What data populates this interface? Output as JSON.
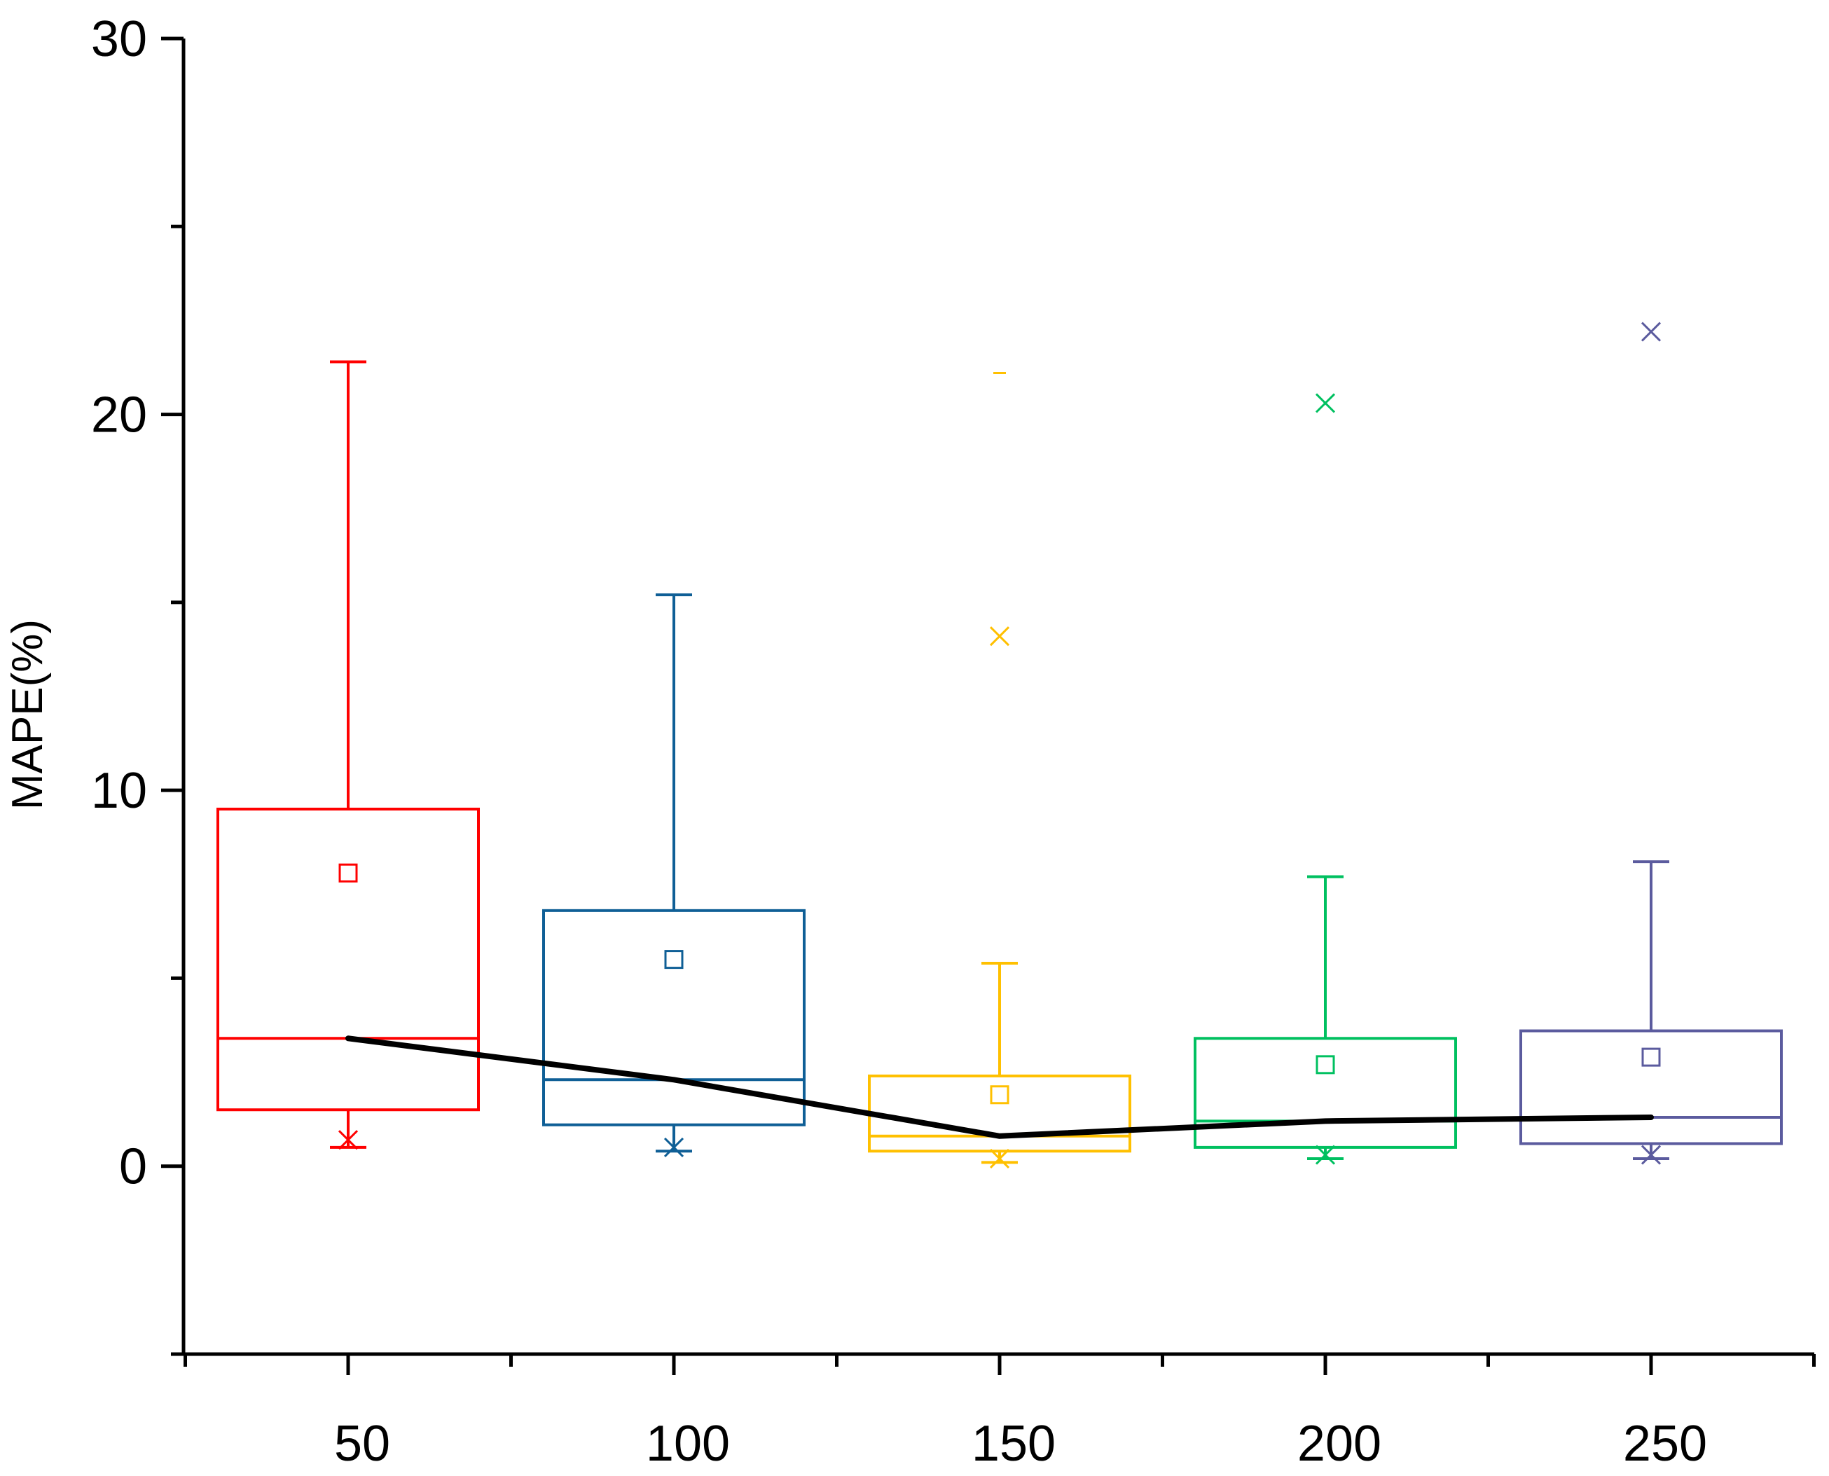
{
  "chart_data": {
    "type": "box",
    "title": "",
    "xlabel": "",
    "ylabel": "MAPE(%)",
    "ylim": [
      -5,
      30
    ],
    "y_ticks": [
      0,
      10,
      20,
      30
    ],
    "y_tick_labels": [
      "0",
      "10",
      "20",
      "30"
    ],
    "categories": [
      "50",
      "100",
      "150",
      "200",
      "250"
    ],
    "grid": false,
    "boxes": [
      {
        "category": "50",
        "color": "#ff0000",
        "whisker_low": 0.5,
        "q1": 1.5,
        "median": 3.4,
        "q3": 9.5,
        "whisker_high": 21.4,
        "mean": 7.8,
        "min_marker": 0.7,
        "max_marker": null
      },
      {
        "category": "100",
        "color": "#0f5f96",
        "whisker_low": 0.4,
        "q1": 1.1,
        "median": 2.3,
        "q3": 6.8,
        "whisker_high": 15.2,
        "mean": 5.5,
        "min_marker": 0.5,
        "max_marker": null
      },
      {
        "category": "150",
        "color": "#ffc000",
        "whisker_low": 0.1,
        "q1": 0.4,
        "median": 0.8,
        "q3": 2.4,
        "whisker_high": 5.4,
        "mean": 1.9,
        "min_marker": 0.2,
        "max_marker": 21.1,
        "outliers": [
          14.1
        ]
      },
      {
        "category": "200",
        "color": "#00c060",
        "whisker_low": 0.2,
        "q1": 0.5,
        "median": 1.2,
        "q3": 3.4,
        "whisker_high": 7.7,
        "mean": 2.7,
        "min_marker": 0.3,
        "max_marker": 20.3
      },
      {
        "category": "250",
        "color": "#5b5b9e",
        "whisker_low": 0.2,
        "q1": 0.6,
        "median": 1.3,
        "q3": 3.6,
        "whisker_high": 8.1,
        "mean": 2.9,
        "min_marker": 0.3,
        "max_marker": 22.2
      }
    ],
    "median_line": {
      "color": "#000000",
      "values": [
        3.4,
        2.3,
        0.8,
        1.2,
        1.3
      ]
    }
  }
}
